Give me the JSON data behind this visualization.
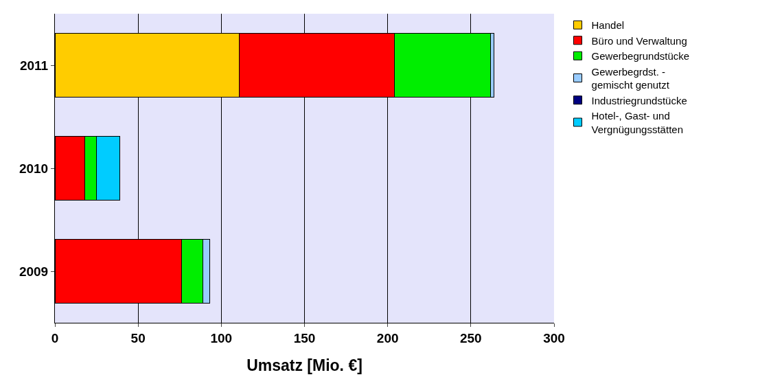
{
  "chart_data": {
    "type": "bar",
    "orientation": "horizontal",
    "stacked": true,
    "xlabel": "Umsatz [Mio. €]",
    "categories": [
      "2011",
      "2010",
      "2009"
    ],
    "xlim": [
      0,
      300
    ],
    "xticks": [
      0,
      50,
      100,
      150,
      200,
      250,
      300
    ],
    "grid": "x",
    "legend": "right",
    "series": [
      {
        "name": "Handel",
        "color": "#ffcc00",
        "values": [
          111,
          null,
          null
        ]
      },
      {
        "name": "Büro und Verwaltung",
        "color": "#ff0000",
        "values": [
          93,
          18,
          76
        ]
      },
      {
        "name": "Gewerbegrundstücke",
        "color": "#00ee00",
        "values": [
          58,
          7,
          13
        ]
      },
      {
        "name": "Gewerbegrdst. -\ngemischt genutzt",
        "color": "#99ccff",
        "values": [
          2,
          null,
          4
        ]
      },
      {
        "name": "Industriegrundstücke",
        "color": "#000080",
        "values": [
          null,
          null,
          null
        ]
      },
      {
        "name": "Hotel-, Gast- und\nVergnügungsstätten",
        "color": "#00ccff",
        "values": [
          null,
          14,
          null
        ]
      }
    ]
  }
}
